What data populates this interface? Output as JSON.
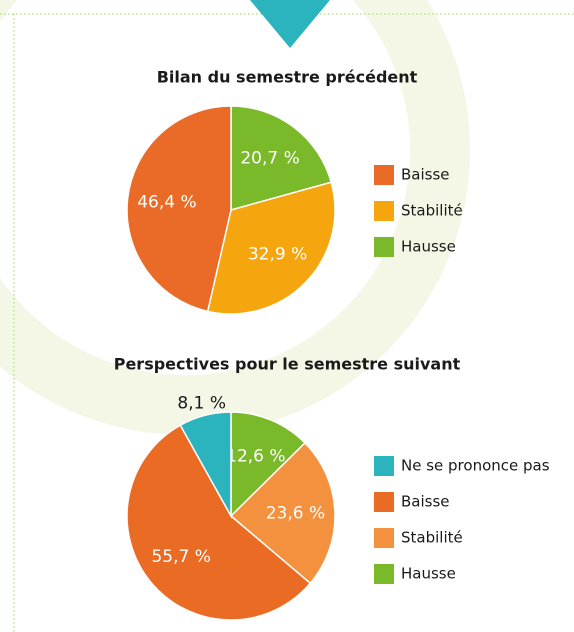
{
  "chart_data": [
    {
      "type": "pie",
      "title": "Bilan du semestre précédent",
      "categories": [
        "Baisse",
        "Stabilité",
        "Hausse"
      ],
      "values": [
        46.4,
        32.9,
        20.7
      ],
      "value_labels": [
        "46,4 %",
        "32,9 %",
        "20,7 %"
      ],
      "colors": [
        "#e96b27",
        "#f5a50d",
        "#7ab929"
      ],
      "legend": "right"
    },
    {
      "type": "pie",
      "title": "Perspectives pour le semestre suivant",
      "categories": [
        "Ne se prononce pas",
        "Baisse",
        "Stabilité",
        "Hausse"
      ],
      "values": [
        8.1,
        55.7,
        23.6,
        12.6
      ],
      "value_labels": [
        "8,1 %",
        "55,7 %",
        "23,6 %",
        "12,6 %"
      ],
      "colors": [
        "#2cb4be",
        "#ea6b24",
        "#f3913f",
        "#7ab929"
      ],
      "legend": "right"
    }
  ]
}
